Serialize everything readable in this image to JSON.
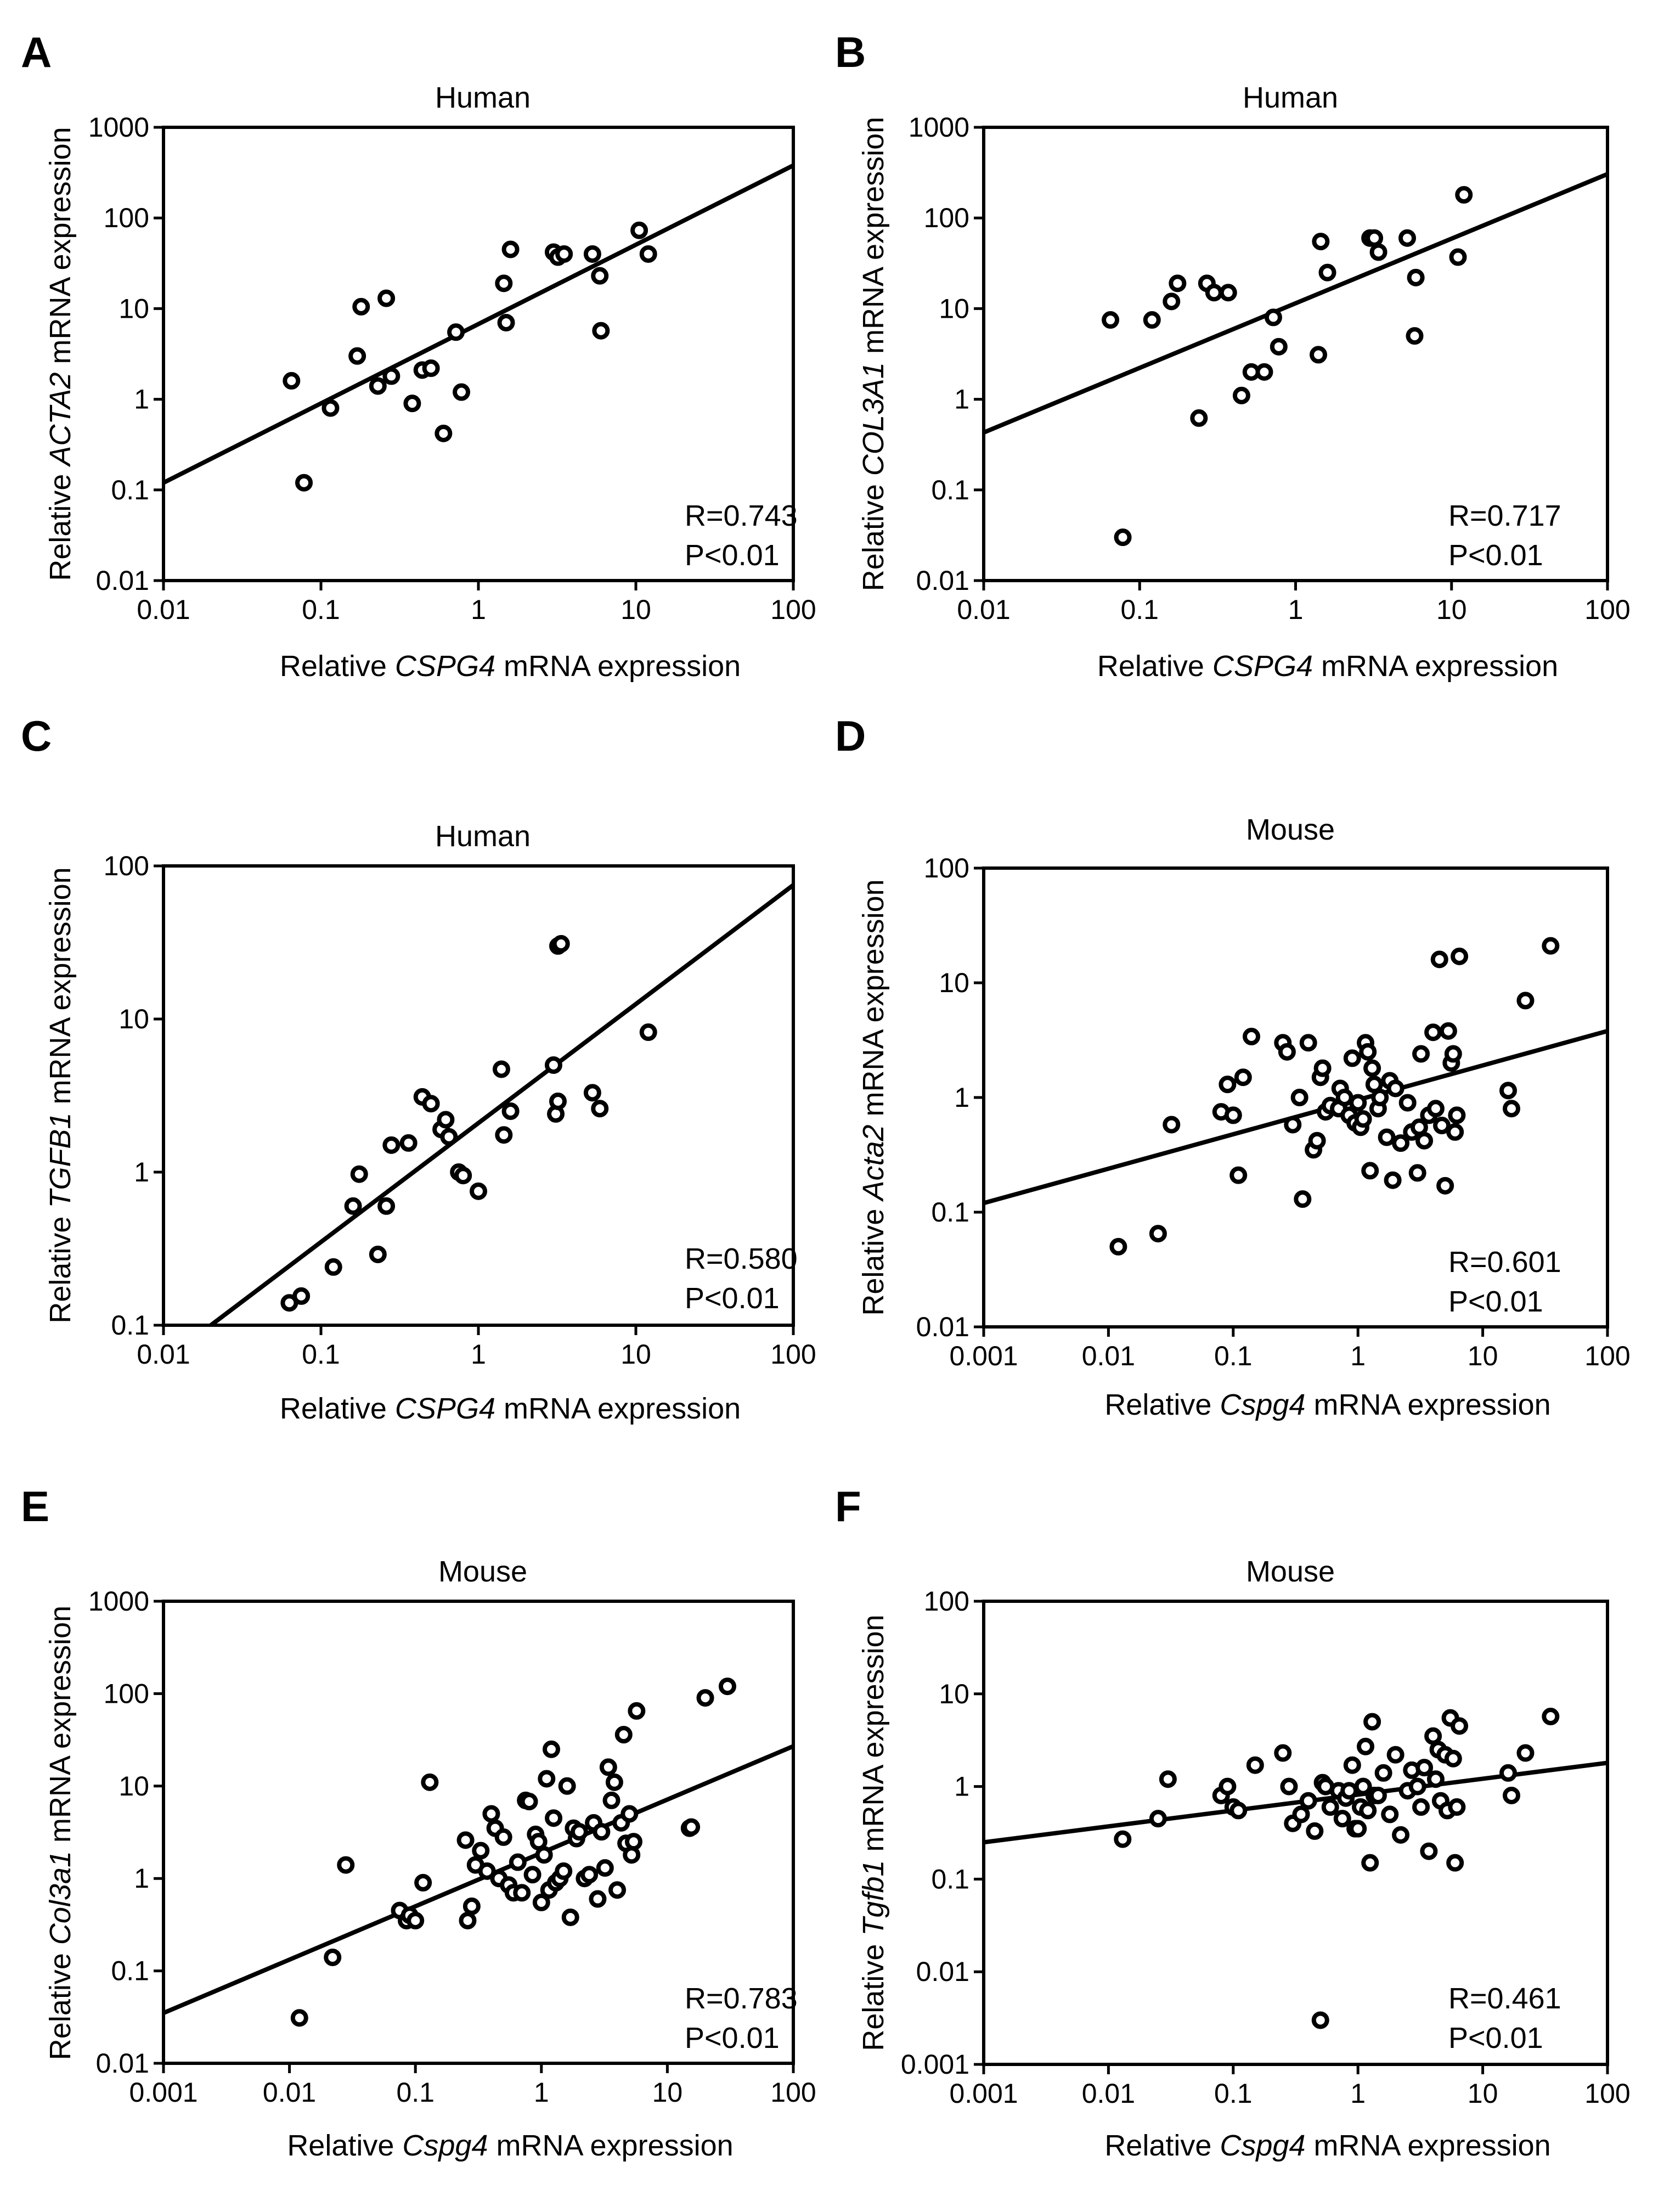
{
  "chart_data": [
    {
      "type": "scatter",
      "panel": "A",
      "title": "Human",
      "xlabel": {
        "pre": "Relative ",
        "gene": "CSPG4",
        "post": " mRNA expression"
      },
      "ylabel": {
        "pre": "Relative ",
        "gene": "ACTA2",
        "post": " mRNA expression"
      },
      "xscale": "log",
      "yscale": "log",
      "xlim": [
        0.01,
        100
      ],
      "ylim": [
        0.01,
        1000
      ],
      "xticks": [
        "0.01",
        "0.1",
        "1",
        "10",
        "100"
      ],
      "yticks": [
        "0.01",
        "0.1",
        "1",
        "10",
        "100",
        "1000"
      ],
      "stat_r": "R=0.743",
      "stat_p": "P<0.01",
      "fit": [
        [
          0.01,
          0.12
        ],
        [
          100,
          380
        ]
      ],
      "points": [
        [
          0.065,
          1.6
        ],
        [
          0.078,
          0.12
        ],
        [
          0.115,
          0.8
        ],
        [
          0.17,
          3.0
        ],
        [
          0.18,
          10.5
        ],
        [
          0.23,
          1.4
        ],
        [
          0.26,
          13
        ],
        [
          0.28,
          1.8
        ],
        [
          0.38,
          0.9
        ],
        [
          0.44,
          2.1
        ],
        [
          0.5,
          2.2
        ],
        [
          0.6,
          0.42
        ],
        [
          0.72,
          5.5
        ],
        [
          0.78,
          1.2
        ],
        [
          1.45,
          19
        ],
        [
          1.5,
          7
        ],
        [
          1.6,
          45
        ],
        [
          3.0,
          42
        ],
        [
          3.2,
          37
        ],
        [
          3.5,
          40
        ],
        [
          5.3,
          40
        ],
        [
          5.9,
          23
        ],
        [
          6.0,
          5.7
        ],
        [
          10.5,
          73
        ],
        [
          12,
          40
        ]
      ]
    },
    {
      "type": "scatter",
      "panel": "B",
      "title": "Human",
      "xlabel": {
        "pre": "Relative ",
        "gene": "CSPG4",
        "post": " mRNA expression"
      },
      "ylabel": {
        "pre": "Relative ",
        "gene": "COL3A1",
        "post": " mRNA expression"
      },
      "xscale": "log",
      "yscale": "log",
      "xlim": [
        0.01,
        100
      ],
      "ylim": [
        0.01,
        1000
      ],
      "xticks": [
        "0.01",
        "0.1",
        "1",
        "10",
        "100"
      ],
      "yticks": [
        "0.01",
        "0.1",
        "1",
        "10",
        "100",
        "1000"
      ],
      "stat_r": "R=0.717",
      "stat_p": "P<0.01",
      "fit": [
        [
          0.01,
          0.43
        ],
        [
          100,
          305
        ]
      ],
      "points": [
        [
          0.065,
          7.5
        ],
        [
          0.078,
          0.03
        ],
        [
          0.12,
          7.5
        ],
        [
          0.16,
          12
        ],
        [
          0.175,
          19
        ],
        [
          0.24,
          0.62
        ],
        [
          0.27,
          19
        ],
        [
          0.3,
          15
        ],
        [
          0.37,
          15
        ],
        [
          0.45,
          1.1
        ],
        [
          0.52,
          2.0
        ],
        [
          0.63,
          2.0
        ],
        [
          0.72,
          8.0
        ],
        [
          0.78,
          3.8
        ],
        [
          1.4,
          3.1
        ],
        [
          1.45,
          55
        ],
        [
          1.6,
          25
        ],
        [
          3.0,
          60
        ],
        [
          3.2,
          60
        ],
        [
          3.4,
          42
        ],
        [
          5.2,
          60
        ],
        [
          5.9,
          22
        ],
        [
          5.8,
          5.0
        ],
        [
          11,
          37
        ],
        [
          12,
          180
        ]
      ]
    },
    {
      "type": "scatter",
      "panel": "C",
      "title": "Human",
      "xlabel": {
        "pre": "Relative ",
        "gene": "CSPG4",
        "post": " mRNA expression"
      },
      "ylabel": {
        "pre": "Relative ",
        "gene": "TGFB1",
        "post": " mRNA expression"
      },
      "xscale": "log",
      "yscale": "log",
      "xlim": [
        0.01,
        100
      ],
      "ylim": [
        0.1,
        100
      ],
      "xticks": [
        "0.01",
        "0.1",
        "1",
        "10",
        "100"
      ],
      "yticks": [
        "0.1",
        "1",
        "10",
        "100"
      ],
      "stat_r": "R=0.580",
      "stat_p": "P<0.01",
      "fit": [
        [
          0.02,
          0.1
        ],
        [
          100,
          75
        ]
      ],
      "points": [
        [
          0.063,
          0.14
        ],
        [
          0.075,
          0.155
        ],
        [
          0.12,
          0.24
        ],
        [
          0.16,
          0.6
        ],
        [
          0.175,
          0.97
        ],
        [
          0.23,
          0.29
        ],
        [
          0.26,
          0.6
        ],
        [
          0.28,
          1.5
        ],
        [
          0.36,
          1.55
        ],
        [
          0.44,
          3.1
        ],
        [
          0.5,
          2.8
        ],
        [
          0.58,
          1.9
        ],
        [
          0.62,
          2.2
        ],
        [
          0.65,
          1.7
        ],
        [
          0.75,
          1.0
        ],
        [
          0.8,
          0.95
        ],
        [
          1.0,
          0.75
        ],
        [
          1.4,
          4.7
        ],
        [
          1.45,
          1.75
        ],
        [
          1.6,
          2.5
        ],
        [
          3.0,
          5.0
        ],
        [
          3.1,
          2.4
        ],
        [
          3.2,
          2.9
        ],
        [
          3.2,
          30
        ],
        [
          3.35,
          31
        ],
        [
          5.3,
          3.3
        ],
        [
          5.9,
          2.6
        ],
        [
          12,
          8.2
        ]
      ]
    },
    {
      "type": "scatter",
      "panel": "D",
      "title": "Mouse",
      "xlabel": {
        "pre": "Relative ",
        "gene": "Cspg4",
        "post": " mRNA expression"
      },
      "ylabel": {
        "pre": "Relative ",
        "gene": "Acta2",
        "post": " mRNA expression"
      },
      "xscale": "log",
      "yscale": "log",
      "xlim": [
        0.001,
        100
      ],
      "ylim": [
        0.01,
        100
      ],
      "xticks": [
        "0.001",
        "0.01",
        "0.1",
        "1",
        "10",
        "100"
      ],
      "yticks": [
        "0.01",
        "0.1",
        "1",
        "10",
        "100"
      ],
      "stat_r": "R=0.601",
      "stat_p": "P<0.01",
      "fit": [
        [
          0.001,
          0.12
        ],
        [
          100,
          3.8
        ]
      ],
      "points": [
        [
          0.012,
          0.05
        ],
        [
          0.025,
          0.065
        ],
        [
          0.032,
          0.58
        ],
        [
          0.08,
          0.75
        ],
        [
          0.09,
          1.3
        ],
        [
          0.1,
          0.7
        ],
        [
          0.11,
          0.21
        ],
        [
          0.12,
          1.5
        ],
        [
          0.14,
          3.4
        ],
        [
          0.25,
          3.0
        ],
        [
          0.27,
          2.5
        ],
        [
          0.3,
          0.58
        ],
        [
          0.34,
          1.0
        ],
        [
          0.36,
          0.13
        ],
        [
          0.4,
          3.0
        ],
        [
          0.44,
          0.35
        ],
        [
          0.47,
          0.42
        ],
        [
          0.5,
          1.5
        ],
        [
          0.52,
          1.8
        ],
        [
          0.55,
          0.75
        ],
        [
          0.6,
          0.85
        ],
        [
          0.7,
          0.8
        ],
        [
          0.72,
          1.2
        ],
        [
          0.78,
          1.0
        ],
        [
          0.85,
          0.7
        ],
        [
          0.9,
          2.2
        ],
        [
          0.95,
          0.6
        ],
        [
          1.0,
          0.9
        ],
        [
          1.05,
          0.55
        ],
        [
          1.1,
          0.65
        ],
        [
          1.15,
          3.0
        ],
        [
          1.2,
          2.5
        ],
        [
          1.25,
          0.23
        ],
        [
          1.3,
          1.8
        ],
        [
          1.35,
          1.3
        ],
        [
          1.45,
          0.8
        ],
        [
          1.5,
          1.0
        ],
        [
          1.7,
          0.45
        ],
        [
          1.8,
          1.4
        ],
        [
          1.9,
          0.19
        ],
        [
          2.0,
          1.2
        ],
        [
          2.2,
          0.4
        ],
        [
          2.5,
          0.9
        ],
        [
          2.7,
          0.5
        ],
        [
          3.0,
          0.22
        ],
        [
          3.1,
          0.55
        ],
        [
          3.2,
          2.4
        ],
        [
          3.4,
          0.42
        ],
        [
          3.7,
          0.7
        ],
        [
          4.0,
          3.7
        ],
        [
          4.2,
          0.8
        ],
        [
          4.5,
          16
        ],
        [
          4.7,
          0.57
        ],
        [
          5.0,
          0.17
        ],
        [
          5.3,
          3.8
        ],
        [
          5.6,
          2.0
        ],
        [
          5.8,
          2.4
        ],
        [
          6.0,
          0.5
        ],
        [
          6.2,
          0.7
        ],
        [
          6.5,
          17
        ],
        [
          16,
          1.15
        ],
        [
          17,
          0.8
        ],
        [
          22,
          7.0
        ],
        [
          35,
          21
        ]
      ]
    },
    {
      "type": "scatter",
      "panel": "E",
      "title": "Mouse",
      "xlabel": {
        "pre": "Relative ",
        "gene": "Cspg4",
        "post": " mRNA expression"
      },
      "ylabel": {
        "pre": "Relative ",
        "gene": "Col3a1",
        "post": " mRNA expression"
      },
      "xscale": "log",
      "yscale": "log",
      "xlim": [
        0.001,
        100
      ],
      "ylim": [
        0.01,
        1000
      ],
      "xticks": [
        "0.001",
        "0.01",
        "0.1",
        "1",
        "10",
        "100"
      ],
      "yticks": [
        "0.01",
        "0.1",
        "1",
        "10",
        "100",
        "1000"
      ],
      "stat_r": "R=0.783",
      "stat_p": "P<0.01",
      "fit": [
        [
          0.001,
          0.035
        ],
        [
          100,
          27
        ]
      ],
      "points": [
        [
          0.012,
          0.031
        ],
        [
          0.022,
          0.14
        ],
        [
          0.028,
          1.4
        ],
        [
          0.075,
          0.45
        ],
        [
          0.085,
          0.35
        ],
        [
          0.09,
          0.4
        ],
        [
          0.1,
          0.35
        ],
        [
          0.115,
          0.9
        ],
        [
          0.13,
          11
        ],
        [
          0.25,
          2.6
        ],
        [
          0.26,
          0.35
        ],
        [
          0.28,
          0.5
        ],
        [
          0.3,
          1.4
        ],
        [
          0.33,
          2.0
        ],
        [
          0.37,
          1.2
        ],
        [
          0.4,
          5.0
        ],
        [
          0.43,
          3.5
        ],
        [
          0.46,
          1.0
        ],
        [
          0.5,
          2.8
        ],
        [
          0.55,
          0.85
        ],
        [
          0.6,
          0.7
        ],
        [
          0.65,
          1.5
        ],
        [
          0.7,
          0.7
        ],
        [
          0.75,
          7.0
        ],
        [
          0.8,
          6.8
        ],
        [
          0.85,
          1.1
        ],
        [
          0.9,
          3.0
        ],
        [
          0.95,
          2.5
        ],
        [
          1.0,
          0.55
        ],
        [
          1.05,
          1.8
        ],
        [
          1.1,
          12
        ],
        [
          1.15,
          0.75
        ],
        [
          1.2,
          25
        ],
        [
          1.25,
          4.5
        ],
        [
          1.3,
          0.9
        ],
        [
          1.4,
          1.0
        ],
        [
          1.5,
          1.2
        ],
        [
          1.6,
          10
        ],
        [
          1.7,
          0.38
        ],
        [
          1.8,
          3.5
        ],
        [
          1.9,
          2.7
        ],
        [
          2.0,
          3.2
        ],
        [
          2.2,
          1.0
        ],
        [
          2.4,
          1.1
        ],
        [
          2.6,
          4.0
        ],
        [
          2.8,
          0.6
        ],
        [
          3.0,
          3.2
        ],
        [
          3.2,
          1.3
        ],
        [
          3.4,
          16
        ],
        [
          3.6,
          7.0
        ],
        [
          3.8,
          11
        ],
        [
          4.0,
          0.75
        ],
        [
          4.3,
          4.0
        ],
        [
          4.5,
          36
        ],
        [
          4.7,
          2.4
        ],
        [
          5.0,
          5.0
        ],
        [
          5.2,
          1.8
        ],
        [
          5.4,
          2.5
        ],
        [
          5.7,
          65
        ],
        [
          15,
          3.5
        ],
        [
          15.5,
          3.6
        ],
        [
          20,
          90
        ],
        [
          30,
          120
        ]
      ]
    },
    {
      "type": "scatter",
      "panel": "F",
      "title": "Mouse",
      "xlabel": {
        "pre": "Relative ",
        "gene": "Cspg4",
        "post": " mRNA expression"
      },
      "ylabel": {
        "pre": "Relative ",
        "gene": "Tgfb1",
        "post": " mRNA expression"
      },
      "xscale": "log",
      "yscale": "log",
      "xlim": [
        0.001,
        100
      ],
      "ylim": [
        0.001,
        100
      ],
      "xticks": [
        "0.001",
        "0.01",
        "0.1",
        "1",
        "10",
        "100"
      ],
      "yticks": [
        "0.001",
        "0.01",
        "0.1",
        "1",
        "10",
        "100"
      ],
      "stat_r": "R=0.461",
      "stat_p": "P<0.01",
      "fit": [
        [
          0.001,
          0.25
        ],
        [
          100,
          1.8
        ]
      ],
      "points": [
        [
          0.013,
          0.27
        ],
        [
          0.025,
          0.45
        ],
        [
          0.03,
          1.2
        ],
        [
          0.08,
          0.8
        ],
        [
          0.09,
          1.0
        ],
        [
          0.1,
          0.6
        ],
        [
          0.11,
          0.55
        ],
        [
          0.15,
          1.7
        ],
        [
          0.25,
          2.3
        ],
        [
          0.28,
          1.0
        ],
        [
          0.3,
          0.4
        ],
        [
          0.35,
          0.5
        ],
        [
          0.4,
          0.7
        ],
        [
          0.45,
          0.33
        ],
        [
          0.5,
          0.003
        ],
        [
          0.52,
          1.1
        ],
        [
          0.55,
          1.0
        ],
        [
          0.6,
          0.6
        ],
        [
          0.7,
          0.9
        ],
        [
          0.75,
          0.45
        ],
        [
          0.8,
          0.75
        ],
        [
          0.85,
          0.9
        ],
        [
          0.9,
          1.7
        ],
        [
          0.95,
          0.35
        ],
        [
          1.0,
          0.35
        ],
        [
          1.05,
          0.6
        ],
        [
          1.1,
          1.0
        ],
        [
          1.15,
          2.7
        ],
        [
          1.2,
          0.55
        ],
        [
          1.25,
          0.15
        ],
        [
          1.3,
          5.0
        ],
        [
          1.35,
          0.8
        ],
        [
          1.45,
          0.8
        ],
        [
          1.6,
          1.4
        ],
        [
          1.8,
          0.5
        ],
        [
          2.0,
          2.2
        ],
        [
          2.2,
          0.3
        ],
        [
          2.5,
          0.9
        ],
        [
          2.7,
          1.5
        ],
        [
          3.0,
          1.0
        ],
        [
          3.2,
          0.6
        ],
        [
          3.4,
          1.6
        ],
        [
          3.7,
          0.2
        ],
        [
          4.0,
          3.5
        ],
        [
          4.2,
          1.2
        ],
        [
          4.4,
          2.5
        ],
        [
          4.6,
          0.7
        ],
        [
          5.0,
          2.2
        ],
        [
          5.2,
          0.55
        ],
        [
          5.5,
          5.5
        ],
        [
          5.8,
          2.0
        ],
        [
          6.0,
          0.15
        ],
        [
          6.2,
          0.6
        ],
        [
          6.5,
          4.5
        ],
        [
          16,
          1.4
        ],
        [
          17,
          0.8
        ],
        [
          22,
          2.3
        ],
        [
          35,
          5.7
        ]
      ]
    }
  ]
}
